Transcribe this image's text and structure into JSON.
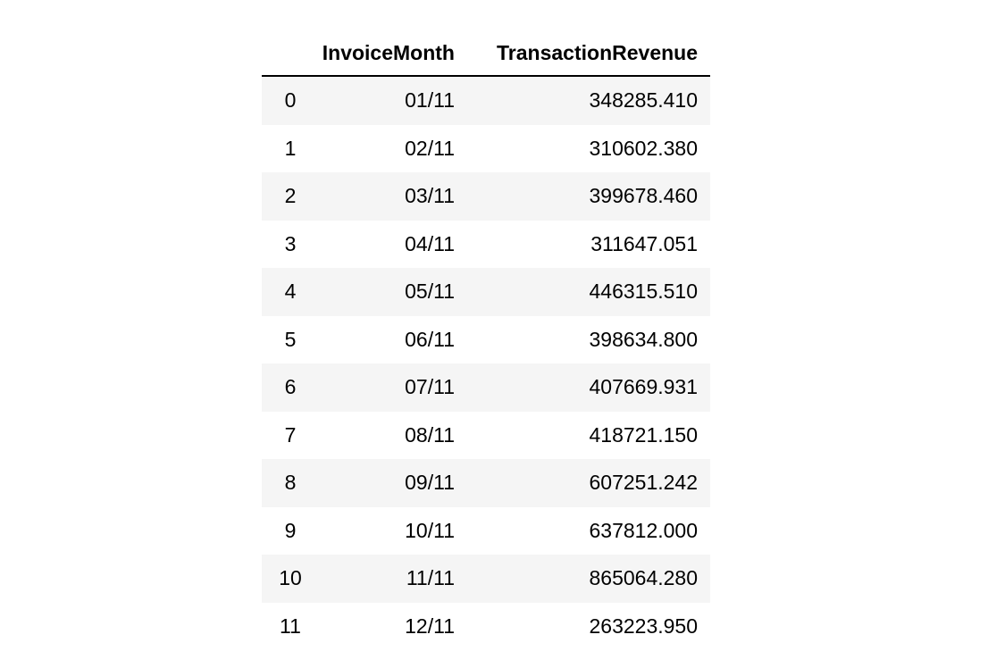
{
  "table": {
    "headers": [
      "",
      "InvoiceMonth",
      "TransactionRevenue"
    ],
    "rows": [
      {
        "index": "0",
        "month": "01/11",
        "revenue": "348285.410"
      },
      {
        "index": "1",
        "month": "02/11",
        "revenue": "310602.380"
      },
      {
        "index": "2",
        "month": "03/11",
        "revenue": "399678.460"
      },
      {
        "index": "3",
        "month": "04/11",
        "revenue": "311647.051"
      },
      {
        "index": "4",
        "month": "05/11",
        "revenue": "446315.510"
      },
      {
        "index": "5",
        "month": "06/11",
        "revenue": "398634.800"
      },
      {
        "index": "6",
        "month": "07/11",
        "revenue": "407669.931"
      },
      {
        "index": "7",
        "month": "08/11",
        "revenue": "418721.150"
      },
      {
        "index": "8",
        "month": "09/11",
        "revenue": "607251.242"
      },
      {
        "index": "9",
        "month": "10/11",
        "revenue": "637812.000"
      },
      {
        "index": "10",
        "month": "11/11",
        "revenue": "865064.280"
      },
      {
        "index": "11",
        "month": "12/11",
        "revenue": "263223.950"
      }
    ]
  },
  "colors": {
    "stripe": "#f5f5f5",
    "header_rule": "#000000",
    "text": "#000000"
  }
}
